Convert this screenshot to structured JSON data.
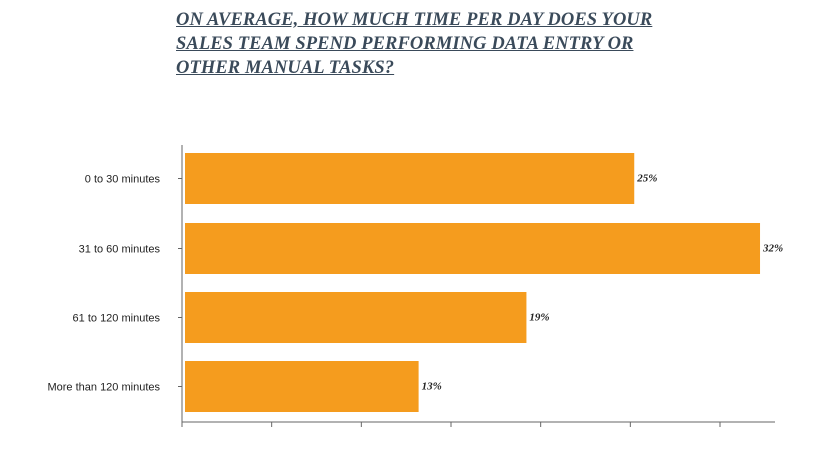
{
  "title_lines": [
    "ON AVERAGE, HOW MUCH TIME PER DAY DOES YOUR",
    "SALES TEAM SPEND PERFORMING DATA ENTRY OR",
    "OTHER MANUAL TASKS?"
  ],
  "chart_data": {
    "type": "bar",
    "orientation": "horizontal",
    "title": "ON AVERAGE, HOW MUCH TIME PER DAY DOES YOUR SALES TEAM SPEND PERFORMING DATA ENTRY OR OTHER MANUAL TASKS?",
    "categories": [
      "0 to 30 minutes",
      "31 to 60 minutes",
      "61 to 120 minutes",
      "More than 120 minutes"
    ],
    "values": [
      25,
      32,
      19,
      13
    ],
    "value_labels": [
      "25%",
      "32%",
      "19%",
      "13%"
    ],
    "xlim": [
      0,
      33
    ],
    "x_tick_count": 7,
    "grid": false,
    "bar_color": "#f59c1e",
    "axis_color": "#666666"
  }
}
